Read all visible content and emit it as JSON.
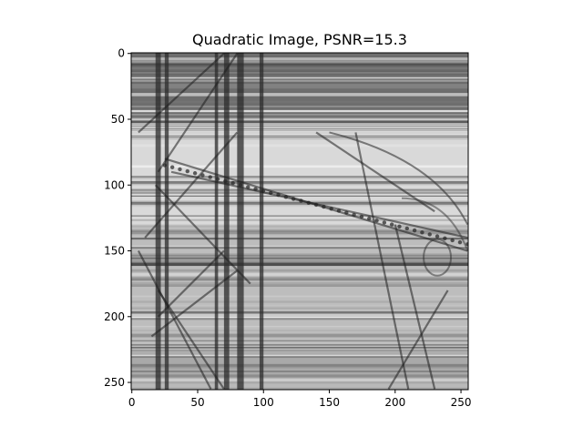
{
  "chart_data": {
    "type": "heatmap",
    "title": "Quadratic Image, PSNR=15.3",
    "xlabel": "",
    "ylabel": "",
    "xlim": [
      -0.5,
      255.5
    ],
    "ylim": [
      255.5,
      -0.5
    ],
    "x_ticks": [
      0,
      50,
      100,
      150,
      200,
      250
    ],
    "y_ticks": [
      0,
      50,
      100,
      150,
      200,
      250
    ],
    "x_tick_labels": [
      "0",
      "50",
      "100",
      "150",
      "200",
      "250"
    ],
    "y_tick_labels": [
      "0",
      "50",
      "100",
      "150",
      "200",
      "250"
    ],
    "colormap": "gray",
    "grid": false,
    "image_description_note": ""
  }
}
